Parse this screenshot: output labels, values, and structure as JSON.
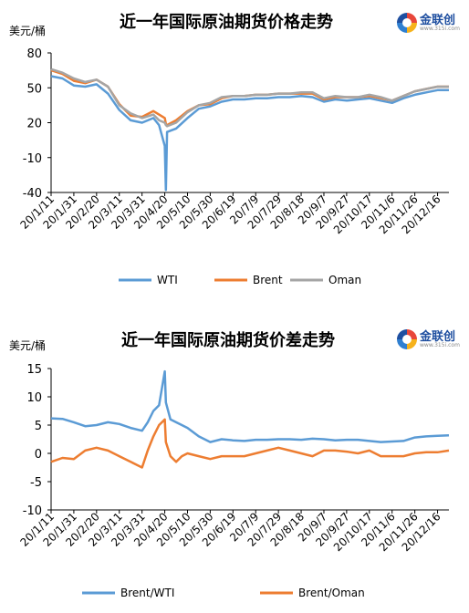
{
  "logo": {
    "name": "金联创",
    "url": "www.315i.com"
  },
  "chart_data": [
    {
      "type": "line",
      "title": "近一年国际原油期货价格走势",
      "unit_label": "美元/桶",
      "ylim": [
        -40,
        80
      ],
      "yticks": [
        -40,
        -10,
        20,
        50,
        80
      ],
      "x_tick_labels": [
        "20/1/11",
        "20/1/31",
        "20/2/20",
        "20/3/11",
        "20/3/31",
        "20/4/20",
        "20/5/10",
        "20/5/30",
        "20/6/19",
        "20/7/9",
        "20/7/29",
        "20/8/18",
        "20/9/7",
        "20/9/27",
        "20/10/17",
        "20/11/6",
        "20/11/26",
        "20/12/16"
      ],
      "x": [
        "20/1/11",
        "20/1/21",
        "20/1/31",
        "20/2/10",
        "20/2/20",
        "20/3/1",
        "20/3/11",
        "20/3/21",
        "20/3/31",
        "20/4/10",
        "20/4/15",
        "20/4/20",
        "20/4/21",
        "20/4/22",
        "20/4/30",
        "20/5/10",
        "20/5/20",
        "20/5/30",
        "20/6/9",
        "20/6/19",
        "20/6/29",
        "20/7/9",
        "20/7/19",
        "20/7/29",
        "20/8/8",
        "20/8/18",
        "20/8/28",
        "20/9/7",
        "20/9/17",
        "20/9/27",
        "20/10/7",
        "20/10/17",
        "20/10/27",
        "20/11/6",
        "20/11/16",
        "20/11/26",
        "20/12/6",
        "20/12/16",
        "20/12/26"
      ],
      "legend_position": "bottom",
      "series": [
        {
          "name": "WTI",
          "color": "#5b9bd5",
          "values": [
            60,
            58,
            52,
            51,
            53,
            45,
            31,
            22,
            20,
            24,
            18,
            0,
            -38,
            12,
            15,
            24,
            32,
            34,
            38,
            40,
            40,
            41,
            41,
            42,
            42,
            43,
            42,
            38,
            40,
            39,
            40,
            41,
            39,
            37,
            41,
            44,
            46,
            48,
            48
          ]
        },
        {
          "name": "Brent",
          "color": "#ed7d31",
          "values": [
            65,
            62,
            56,
            54,
            57,
            51,
            36,
            26,
            25,
            30,
            27,
            24,
            19,
            18,
            22,
            30,
            35,
            36,
            41,
            43,
            43,
            44,
            44,
            45,
            45,
            45,
            45,
            40,
            42,
            42,
            42,
            43,
            41,
            39,
            43,
            47,
            49,
            51,
            51
          ]
        },
        {
          "name": "Oman",
          "color": "#a5a5a5",
          "values": [
            66,
            63,
            58,
            55,
            57,
            51,
            35,
            28,
            24,
            27,
            22,
            20,
            18,
            17,
            20,
            29,
            35,
            37,
            42,
            43,
            43,
            44,
            44,
            45,
            45,
            46,
            46,
            41,
            43,
            42,
            42,
            44,
            42,
            39,
            43,
            47,
            49,
            51,
            51
          ]
        }
      ]
    },
    {
      "type": "line",
      "title": "近一年国际原油期货价差走势",
      "unit_label": "美元/桶",
      "ylim": [
        -10,
        15
      ],
      "yticks": [
        -10,
        -5,
        0,
        5,
        10,
        15
      ],
      "x_tick_labels": [
        "20/1/11",
        "20/1/31",
        "20/2/20",
        "20/3/11",
        "20/3/31",
        "20/4/20",
        "20/5/10",
        "20/5/30",
        "20/6/19",
        "20/7/9",
        "20/7/29",
        "20/8/18",
        "20/9/7",
        "20/9/27",
        "20/10/17",
        "20/11/6",
        "20/11/26",
        "20/12/16"
      ],
      "x": [
        "20/1/11",
        "20/1/21",
        "20/1/31",
        "20/2/10",
        "20/2/20",
        "20/3/1",
        "20/3/11",
        "20/3/21",
        "20/3/31",
        "20/4/5",
        "20/4/10",
        "20/4/15",
        "20/4/20",
        "20/4/21",
        "20/4/25",
        "20/4/30",
        "20/5/5",
        "20/5/10",
        "20/5/20",
        "20/5/30",
        "20/6/9",
        "20/6/19",
        "20/6/29",
        "20/7/9",
        "20/7/19",
        "20/7/29",
        "20/8/8",
        "20/8/18",
        "20/8/28",
        "20/9/7",
        "20/9/17",
        "20/9/27",
        "20/10/7",
        "20/10/17",
        "20/10/27",
        "20/11/6",
        "20/11/16",
        "20/11/26",
        "20/12/6",
        "20/12/16",
        "20/12/26"
      ],
      "legend_position": "bottom",
      "series": [
        {
          "name": "Brent/WTI",
          "color": "#5b9bd5",
          "values": [
            6.2,
            6.1,
            5.5,
            4.8,
            5.0,
            5.5,
            5.2,
            4.5,
            4.0,
            5.5,
            7.5,
            8.5,
            14.5,
            9.0,
            6.0,
            5.5,
            5.0,
            4.5,
            3.0,
            2.0,
            2.5,
            2.3,
            2.2,
            2.4,
            2.4,
            2.5,
            2.5,
            2.4,
            2.6,
            2.5,
            2.3,
            2.4,
            2.4,
            2.2,
            2.0,
            2.1,
            2.2,
            2.8,
            3.0,
            3.1,
            3.2
          ]
        },
        {
          "name": "Brent/Oman",
          "color": "#ed7d31",
          "values": [
            -1.5,
            -0.8,
            -1.0,
            0.5,
            1.0,
            0.5,
            -0.5,
            -1.5,
            -2.5,
            0.5,
            3.0,
            5.0,
            6.0,
            2.0,
            -0.5,
            -1.5,
            -0.5,
            0.0,
            -0.5,
            -1.0,
            -0.5,
            -0.5,
            -0.5,
            0.0,
            0.5,
            1.0,
            0.5,
            0.0,
            -0.5,
            0.5,
            0.5,
            0.3,
            0.0,
            0.5,
            -0.5,
            -0.5,
            -0.5,
            0.0,
            0.2,
            0.2,
            0.5
          ]
        }
      ]
    }
  ]
}
